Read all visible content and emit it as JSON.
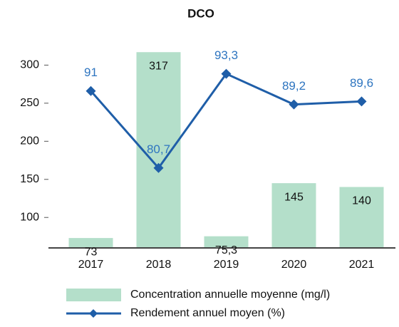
{
  "chart_data": {
    "type": "bar",
    "title": "DCO",
    "categories": [
      "2017",
      "2018",
      "2019",
      "2020",
      "2021"
    ],
    "series": [
      {
        "name": "Concentration annuelle moyenne (mg/l)",
        "type": "bar",
        "color": "#b4dfca",
        "values": [
          73,
          317,
          75.3,
          145,
          140
        ],
        "value_labels": [
          "73",
          "317",
          "75,3",
          "145",
          "140"
        ]
      },
      {
        "name": "Rendement annuel moyen (%)",
        "type": "line",
        "axis": "y2",
        "color": "#1f5ea8",
        "values": [
          91,
          80.7,
          93.3,
          89.2,
          89.6
        ],
        "value_labels": [
          "91",
          "80,7",
          "93,3",
          "89,2",
          "89,6"
        ]
      }
    ],
    "ylim": [
      60,
      320
    ],
    "yticks": [
      100,
      150,
      200,
      250,
      300
    ],
    "y2lim": [
      70,
      96.5
    ],
    "grid": false
  }
}
